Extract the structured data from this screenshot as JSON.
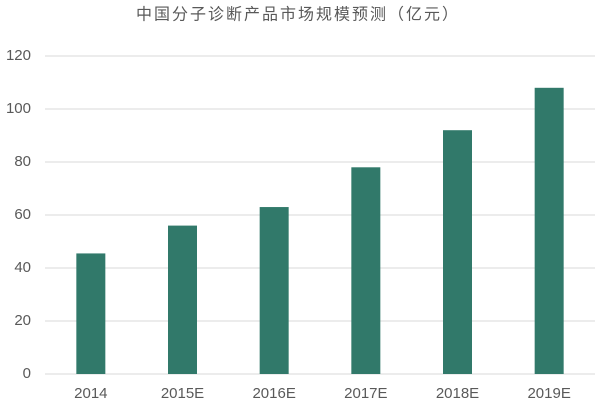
{
  "chart_data": {
    "type": "bar",
    "title": "中国分子诊断产品市场规模预测（亿元）",
    "categories": [
      "2014",
      "2015E",
      "2016E",
      "2017E",
      "2018E",
      "2019E"
    ],
    "values": [
      45.5,
      56,
      63,
      78,
      92,
      108
    ],
    "color": "#31796a",
    "ylim": [
      0,
      120
    ],
    "yticks": [
      0,
      20,
      40,
      60,
      80,
      100,
      120
    ],
    "grid": true
  }
}
